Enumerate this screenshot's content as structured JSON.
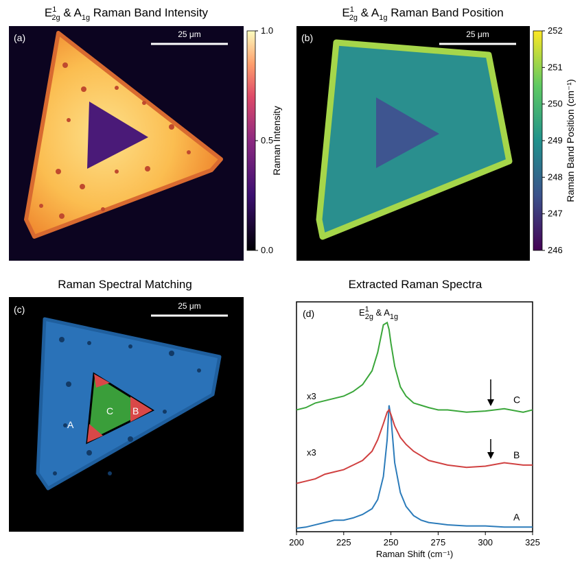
{
  "chart_data": [
    {
      "type": "image",
      "panel_label": "(a)",
      "title_parts": [
        "E",
        "1",
        "2g",
        " & A",
        "1g",
        " Raman Band Intensity"
      ],
      "scale_bar_label": "25 μm",
      "colorbar_label": "Raman Intensity",
      "clim": [
        0,
        1
      ],
      "cticks": [
        {
          "value": 0,
          "label": "0.0"
        },
        {
          "value": 0.5,
          "label": "0.5"
        },
        {
          "value": 1,
          "label": "1.0"
        }
      ]
    },
    {
      "type": "image",
      "panel_label": "(b)",
      "title_parts": [
        "E",
        "1",
        "2g",
        " & A",
        "1g",
        " Raman Band Position"
      ],
      "scale_bar_label": "25 μm",
      "colorbar_label": "Raman Band Position (cm⁻¹)",
      "clim": [
        246,
        252
      ],
      "cticks": [
        246,
        247,
        248,
        249,
        250,
        251,
        252
      ]
    },
    {
      "type": "image",
      "panel_label": "(c)",
      "title": "Raman Spectral Matching",
      "scale_bar_label": "25 μm",
      "region_labels": [
        "A",
        "C",
        "B"
      ]
    },
    {
      "type": "line",
      "panel_label": "(d)",
      "title": "Extracted Raman Spectra",
      "xlabel": "Raman Shift (cm⁻¹)",
      "x": [
        200,
        205,
        210,
        215,
        220,
        225,
        230,
        235,
        240,
        243,
        246,
        248,
        249,
        250,
        252,
        255,
        258,
        262,
        266,
        270,
        275,
        280,
        290,
        300,
        310,
        320,
        325
      ],
      "xlim": [
        200,
        325
      ],
      "xticks": [
        200,
        225,
        250,
        275,
        300,
        325
      ],
      "ylim": [
        0,
        100
      ],
      "series": [
        {
          "name": "A",
          "color": "#2b7bba",
          "values": [
            1.5,
            2,
            3,
            4,
            5,
            5,
            6,
            7.5,
            10,
            14,
            24,
            40,
            55,
            50,
            30,
            17,
            11,
            7,
            5,
            4,
            3.5,
            3,
            2.5,
            2.5,
            2,
            2,
            2
          ]
        },
        {
          "name": "B",
          "color": "#d04040",
          "values": [
            21,
            22,
            23,
            25,
            26,
            27,
            29,
            31,
            35,
            40,
            47,
            52,
            53,
            51,
            46,
            41,
            38,
            35,
            33,
            31,
            30,
            29,
            28,
            28.5,
            30,
            29,
            29
          ]
        },
        {
          "name": "C",
          "color": "#3aa63a",
          "values": [
            53,
            54,
            56,
            57,
            58,
            59,
            61,
            64,
            70,
            78,
            90,
            91,
            88,
            82,
            72,
            63,
            59,
            56,
            55,
            54,
            53,
            53,
            52,
            52.5,
            53.5,
            52,
            53
          ]
        }
      ],
      "peak_label_parts": [
        "E",
        "1",
        "2g",
        " & A",
        "1g"
      ],
      "scale_labels": [
        "x3",
        "x3"
      ]
    }
  ]
}
